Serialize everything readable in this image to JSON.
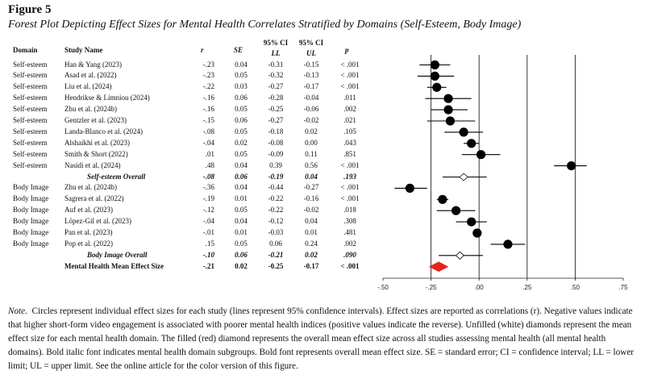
{
  "figure": {
    "label": "Figure 5",
    "title": "Forest Plot Depicting Effect Sizes for Mental Health Correlates Stratified by Domains (Self-Esteem, Body Image)"
  },
  "headers": {
    "domain": "Domain",
    "study": "Study Name",
    "r": "r",
    "se": "SE",
    "ci_label_1": "95% CI",
    "ci_label_2": "95% CI",
    "ll": "LL",
    "ul": "UL",
    "p": "p"
  },
  "rows": [
    {
      "domain": "Self-esteem",
      "study": "Han & Yang (2023)",
      "r": "-.23",
      "se": "0.04",
      "ll": "-0.31",
      "ul": "-0.15",
      "p": "< .001",
      "kind": "study"
    },
    {
      "domain": "Self-esteem",
      "study": "Asad et al. (2022)",
      "r": "-.23",
      "se": "0.05",
      "ll": "-0.32",
      "ul": "-0.13",
      "p": "< .001",
      "kind": "study"
    },
    {
      "domain": "Self-esteem",
      "study": "Liu et al. (2024)",
      "r": "-.22",
      "se": "0.03",
      "ll": "-0.27",
      "ul": "-0.17",
      "p": "< .001",
      "kind": "study"
    },
    {
      "domain": "Self-esteem",
      "study": "Hendrikse & Limniou (2024)",
      "r": "-.16",
      "se": "0.06",
      "ll": "-0.28",
      "ul": "-0.04",
      "p": ".011",
      "kind": "study"
    },
    {
      "domain": "Self-esteem",
      "study": "Zhu et al. (2024b)",
      "r": "-.16",
      "se": "0.05",
      "ll": "-0.25",
      "ul": "-0.06",
      "p": ".002",
      "kind": "study"
    },
    {
      "domain": "Self-esteem",
      "study": "Gentzler et al. (2023)",
      "r": "-.15",
      "se": "0.06",
      "ll": "-0.27",
      "ul": "-0.02",
      "p": ".021",
      "kind": "study"
    },
    {
      "domain": "Self-esteem",
      "study": "Landa-Blanco et al. (2024)",
      "r": "-.08",
      "se": "0.05",
      "ll": "-0.18",
      "ul": "0.02",
      "p": ".105",
      "kind": "study"
    },
    {
      "domain": "Self-esteem",
      "study": "Alshaikhi et al. (2023)",
      "r": "-.04",
      "se": "0.02",
      "ll": "-0.08",
      "ul": "0.00",
      "p": ".043",
      "kind": "study"
    },
    {
      "domain": "Self-esteem",
      "study": "Smith & Short (2022)",
      "r": ".01",
      "se": "0.05",
      "ll": "-0.09",
      "ul": "0.11",
      "p": ".851",
      "kind": "study"
    },
    {
      "domain": "Self-esteem",
      "study": "Nasidi et al. (2024)",
      "r": ".48",
      "se": "0.04",
      "ll": "0.39",
      "ul": "0.56",
      "p": "< .001",
      "kind": "study"
    },
    {
      "domain": "",
      "study": "Self-esteem Overall",
      "r": "-.08",
      "se": "0.06",
      "ll": "-0.19",
      "ul": "0.04",
      "p": ".193",
      "kind": "subtotal"
    },
    {
      "domain": "Body Image",
      "study": "Zhu et al. (2024b)",
      "r": "-.36",
      "se": "0.04",
      "ll": "-0.44",
      "ul": "-0.27",
      "p": "< .001",
      "kind": "study"
    },
    {
      "domain": "Body Image",
      "study": "Sagrera et al. (2022)",
      "r": "-.19",
      "se": "0.01",
      "ll": "-0.22",
      "ul": "-0.16",
      "p": "< .001",
      "kind": "study"
    },
    {
      "domain": "Body Image",
      "study": "Auf et al. (2023)",
      "r": "-.12",
      "se": "0.05",
      "ll": "-0.22",
      "ul": "-0.02",
      "p": ".018",
      "kind": "study"
    },
    {
      "domain": "Body Image",
      "study": "López-Gil et al. (2023)",
      "r": "-.04",
      "se": "0.04",
      "ll": "-0.12",
      "ul": "0.04",
      "p": ".308",
      "kind": "study"
    },
    {
      "domain": "Body Image",
      "study": "Pan et al. (2023)",
      "r": "-.01",
      "se": "0.01",
      "ll": "-0.03",
      "ul": "0.01",
      "p": ".481",
      "kind": "study"
    },
    {
      "domain": "Body Image",
      "study": "Pop et al. (2022)",
      "r": ".15",
      "se": "0.05",
      "ll": "0.06",
      "ul": "0.24",
      "p": ".002",
      "kind": "study"
    },
    {
      "domain": "",
      "study": "Body Image Overall",
      "r": "-.10",
      "se": "0.06",
      "ll": "-0.21",
      "ul": "0.02",
      "p": ".090",
      "kind": "subtotal"
    },
    {
      "domain": "",
      "study": "Mental Health Mean Effect Size",
      "r": "-.21",
      "se": "0.02",
      "ll": "-0.25",
      "ul": "-0.17",
      "p": "< .001",
      "kind": "overall"
    }
  ],
  "chart_data": {
    "type": "forest",
    "xlim": [
      -0.5,
      0.75
    ],
    "ticks": [
      -0.5,
      -0.25,
      0,
      0.25,
      0.5,
      0.75
    ],
    "tick_labels": [
      "-.50",
      "-.25",
      ".00",
      ".25",
      ".50",
      ".75"
    ],
    "reference_lines": [
      -0.25,
      0,
      0.25,
      0.5
    ],
    "points": [
      {
        "label": "Han & Yang (2023)",
        "r": -0.23,
        "ll": -0.31,
        "ul": -0.15,
        "marker": "circle"
      },
      {
        "label": "Asad et al. (2022)",
        "r": -0.23,
        "ll": -0.32,
        "ul": -0.13,
        "marker": "circle"
      },
      {
        "label": "Liu et al. (2024)",
        "r": -0.22,
        "ll": -0.27,
        "ul": -0.17,
        "marker": "circle"
      },
      {
        "label": "Hendrikse & Limniou (2024)",
        "r": -0.16,
        "ll": -0.28,
        "ul": -0.04,
        "marker": "circle"
      },
      {
        "label": "Zhu et al. (2024b)",
        "r": -0.16,
        "ll": -0.25,
        "ul": -0.06,
        "marker": "circle"
      },
      {
        "label": "Gentzler et al. (2023)",
        "r": -0.15,
        "ll": -0.27,
        "ul": -0.02,
        "marker": "circle"
      },
      {
        "label": "Landa-Blanco et al. (2024)",
        "r": -0.08,
        "ll": -0.18,
        "ul": 0.02,
        "marker": "circle"
      },
      {
        "label": "Alshaikhi et al. (2023)",
        "r": -0.04,
        "ll": -0.08,
        "ul": 0.0,
        "marker": "circle"
      },
      {
        "label": "Smith & Short (2022)",
        "r": 0.01,
        "ll": -0.09,
        "ul": 0.11,
        "marker": "circle"
      },
      {
        "label": "Nasidi et al. (2024)",
        "r": 0.48,
        "ll": 0.39,
        "ul": 0.56,
        "marker": "circle"
      },
      {
        "label": "Self-esteem Overall",
        "r": -0.08,
        "ll": -0.19,
        "ul": 0.04,
        "marker": "open-diamond"
      },
      {
        "label": "Zhu et al. (2024b)",
        "r": -0.36,
        "ll": -0.44,
        "ul": -0.27,
        "marker": "circle"
      },
      {
        "label": "Sagrera et al. (2022)",
        "r": -0.19,
        "ll": -0.22,
        "ul": -0.16,
        "marker": "circle"
      },
      {
        "label": "Auf et al. (2023)",
        "r": -0.12,
        "ll": -0.22,
        "ul": -0.02,
        "marker": "circle"
      },
      {
        "label": "López-Gil et al. (2023)",
        "r": -0.04,
        "ll": -0.12,
        "ul": 0.04,
        "marker": "circle"
      },
      {
        "label": "Pan et al. (2023)",
        "r": -0.01,
        "ll": -0.03,
        "ul": 0.01,
        "marker": "circle"
      },
      {
        "label": "Pop et al. (2022)",
        "r": 0.15,
        "ll": 0.06,
        "ul": 0.24,
        "marker": "circle"
      },
      {
        "label": "Body Image Overall",
        "r": -0.1,
        "ll": -0.21,
        "ul": 0.02,
        "marker": "open-diamond"
      },
      {
        "label": "Mental Health Mean Effect Size",
        "r": -0.21,
        "ll": -0.25,
        "ul": -0.17,
        "marker": "filled-diamond"
      }
    ],
    "colors": {
      "marker": "#000000",
      "overall_diamond": "#e8231c",
      "line": "#000000"
    }
  },
  "note": {
    "lead": "Note.",
    "text": "Circles represent individual effect sizes for each study (lines represent 95% confidence intervals). Effect sizes are reported as correlations (r). Negative values indicate that higher short-form video engagement is associated with poorer mental health indices (positive values indicate the reverse). Unfilled (white) diamonds represent the mean effect size for each mental health domain. The filled (red) diamond represents the overall mean effect size across all studies assessing mental health (all mental health domains). Bold italic font indicates mental health domain subgroups. Bold font represents overall mean effect size. SE = standard error; CI = confidence interval; LL = lower limit; UL = upper limit. See the online article for the color version of this figure."
  }
}
